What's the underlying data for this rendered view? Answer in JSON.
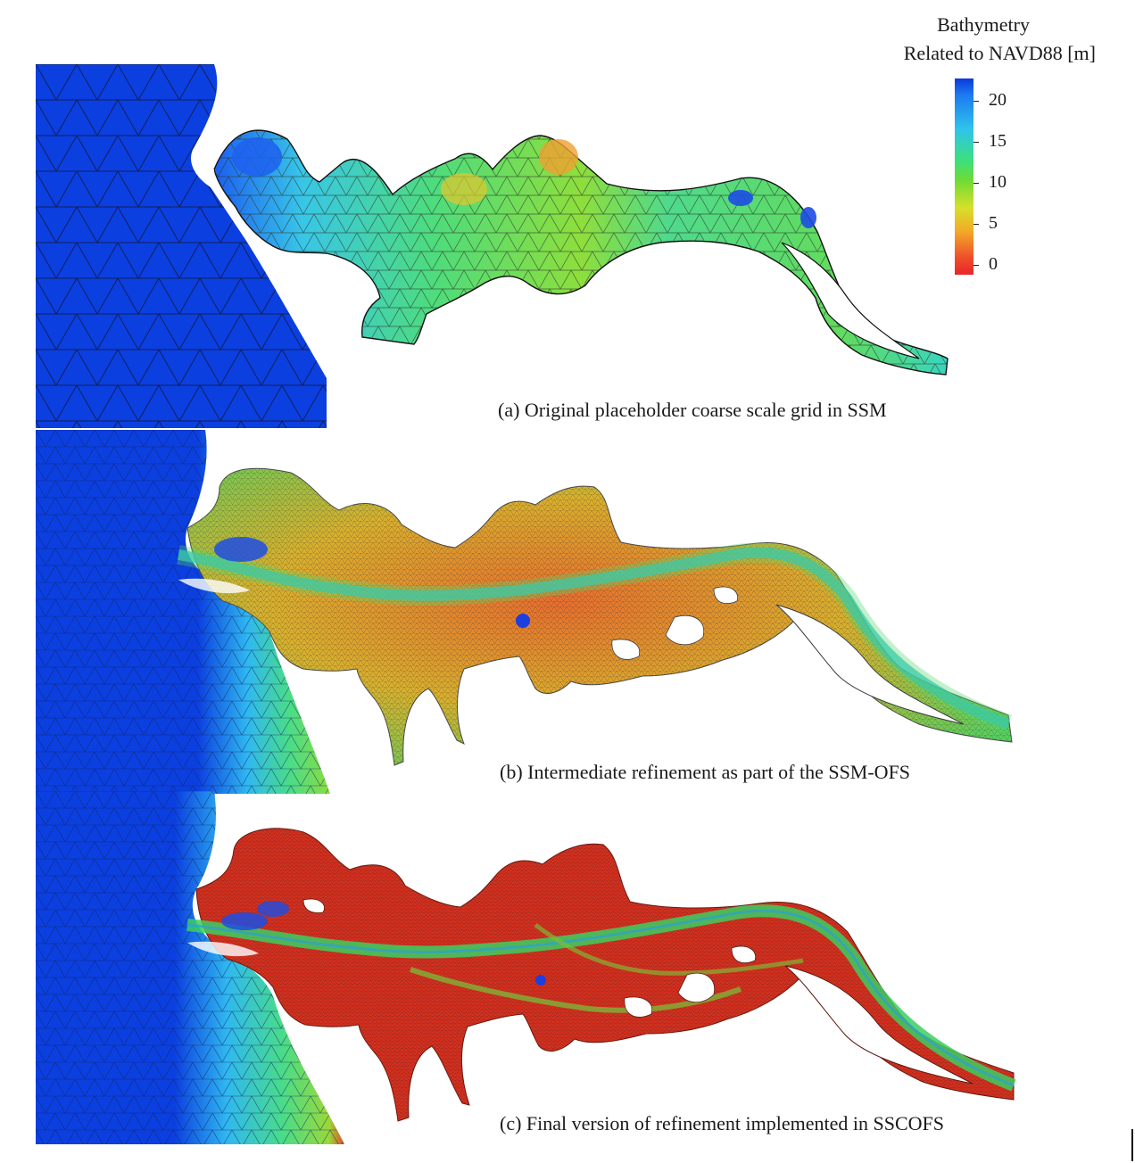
{
  "legend": {
    "title_line1": "Bathymetry",
    "title_line2": "Related to NAVD88 [m]",
    "ticks": [
      "20",
      "15",
      "10",
      "5",
      "0"
    ],
    "tick_values": [
      20,
      15,
      10,
      5,
      0
    ],
    "range": [
      -2,
      23
    ],
    "colors": [
      "#0a3ad8",
      "#2fc4ec",
      "#3ce07a",
      "#d7e02a",
      "#e8262a"
    ]
  },
  "panels": [
    {
      "caption": "(a) Original placeholder coarse scale grid in SSM"
    },
    {
      "caption": "(b) Intermediate refinement as part of the SSM-OFS"
    },
    {
      "caption": "(c) Final version of refinement implemented in SSCOFS"
    }
  ]
}
